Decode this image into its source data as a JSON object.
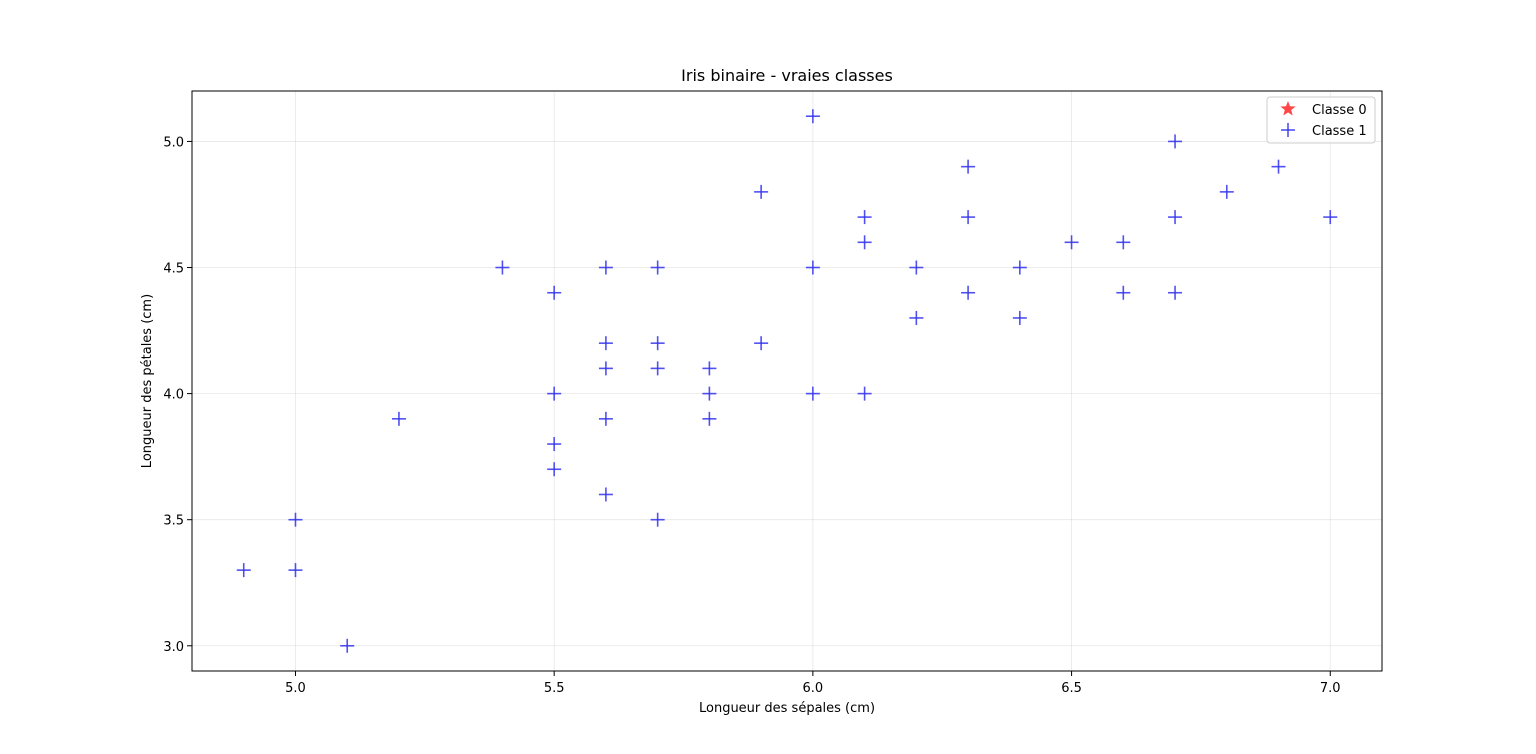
{
  "chart_data": {
    "type": "scatter",
    "title": "Iris binaire - vraies classes",
    "xlabel": "Longueur des sépales (cm)",
    "ylabel": "Longueur des pétales (cm)",
    "xlim": [
      4.8,
      7.1
    ],
    "ylim": [
      2.9,
      5.2
    ],
    "xticks": [
      5.0,
      5.5,
      6.0,
      6.5,
      7.0
    ],
    "xtick_labels": [
      "5.0",
      "5.5",
      "6.0",
      "6.5",
      "7.0"
    ],
    "yticks": [
      3.0,
      3.5,
      4.0,
      4.5,
      5.0
    ],
    "ytick_labels": [
      "3.0",
      "3.5",
      "4.0",
      "4.5",
      "5.0"
    ],
    "grid": true,
    "legend_position": "top-right",
    "series": [
      {
        "name": "Classe 0",
        "marker": "star",
        "color": "#ff3333",
        "points": []
      },
      {
        "name": "Classe 1",
        "marker": "plus",
        "color": "#3333ee",
        "points": [
          [
            4.9,
            3.3
          ],
          [
            5.0,
            3.5
          ],
          [
            5.0,
            3.3
          ],
          [
            5.1,
            3.0
          ],
          [
            5.2,
            3.9
          ],
          [
            5.4,
            4.5
          ],
          [
            5.5,
            4.4
          ],
          [
            5.5,
            4.0
          ],
          [
            5.5,
            3.8
          ],
          [
            5.5,
            3.7
          ],
          [
            5.6,
            4.5
          ],
          [
            5.6,
            4.2
          ],
          [
            5.6,
            4.1
          ],
          [
            5.6,
            3.9
          ],
          [
            5.6,
            3.6
          ],
          [
            5.7,
            4.5
          ],
          [
            5.7,
            4.2
          ],
          [
            5.7,
            4.1
          ],
          [
            5.7,
            3.5
          ],
          [
            5.8,
            4.1
          ],
          [
            5.8,
            4.0
          ],
          [
            5.8,
            3.9
          ],
          [
            5.9,
            4.8
          ],
          [
            5.9,
            4.2
          ],
          [
            6.0,
            5.1
          ],
          [
            6.0,
            4.5
          ],
          [
            6.0,
            4.0
          ],
          [
            6.1,
            4.7
          ],
          [
            6.1,
            4.6
          ],
          [
            6.1,
            4.0
          ],
          [
            6.2,
            4.5
          ],
          [
            6.2,
            4.3
          ],
          [
            6.3,
            4.9
          ],
          [
            6.3,
            4.7
          ],
          [
            6.3,
            4.4
          ],
          [
            6.4,
            4.5
          ],
          [
            6.4,
            4.3
          ],
          [
            6.5,
            4.6
          ],
          [
            6.6,
            4.6
          ],
          [
            6.6,
            4.4
          ],
          [
            6.7,
            5.0
          ],
          [
            6.7,
            4.7
          ],
          [
            6.7,
            4.4
          ],
          [
            6.8,
            4.8
          ],
          [
            6.9,
            4.9
          ],
          [
            7.0,
            4.7
          ]
        ]
      }
    ]
  }
}
